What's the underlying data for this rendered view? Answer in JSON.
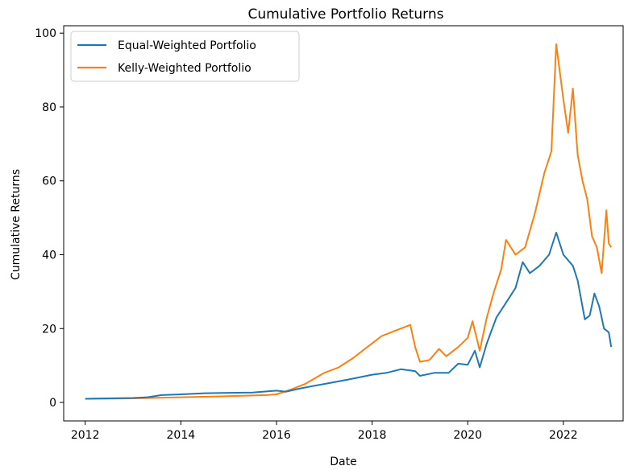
{
  "chart_data": {
    "type": "line",
    "title": "Cumulative Portfolio Returns",
    "xlabel": "Date",
    "ylabel": "Cumulative Returns",
    "xlim": [
      2011.55,
      2023.25
    ],
    "ylim": [
      -5,
      102
    ],
    "xticks": [
      2012,
      2014,
      2016,
      2018,
      2020,
      2022
    ],
    "xtick_labels": [
      "2012",
      "2014",
      "2016",
      "2018",
      "2020",
      "2022"
    ],
    "yticks": [
      0,
      20,
      40,
      60,
      80,
      100
    ],
    "ytick_labels": [
      "0",
      "20",
      "40",
      "60",
      "80",
      "100"
    ],
    "grid": false,
    "legend_position": "top-left",
    "series": [
      {
        "name": "Equal-Weighted Portfolio",
        "color": "#1f77b4",
        "points": [
          [
            2012.0,
            1.0
          ],
          [
            2012.5,
            1.1
          ],
          [
            2013.0,
            1.2
          ],
          [
            2013.3,
            1.4
          ],
          [
            2013.6,
            2.0
          ],
          [
            2014.0,
            2.2
          ],
          [
            2014.5,
            2.5
          ],
          [
            2015.0,
            2.6
          ],
          [
            2015.5,
            2.7
          ],
          [
            2016.0,
            3.2
          ],
          [
            2016.2,
            2.9
          ],
          [
            2016.5,
            3.8
          ],
          [
            2017.0,
            5.0
          ],
          [
            2017.5,
            6.2
          ],
          [
            2018.0,
            7.5
          ],
          [
            2018.3,
            8.0
          ],
          [
            2018.6,
            9.0
          ],
          [
            2018.9,
            8.5
          ],
          [
            2019.0,
            7.2
          ],
          [
            2019.3,
            8.0
          ],
          [
            2019.6,
            8.0
          ],
          [
            2019.8,
            10.5
          ],
          [
            2020.0,
            10.2
          ],
          [
            2020.15,
            14.0
          ],
          [
            2020.25,
            9.5
          ],
          [
            2020.4,
            16.0
          ],
          [
            2020.6,
            23.0
          ],
          [
            2020.8,
            27.0
          ],
          [
            2021.0,
            31.0
          ],
          [
            2021.15,
            38.0
          ],
          [
            2021.3,
            35.0
          ],
          [
            2021.5,
            37.0
          ],
          [
            2021.7,
            40.0
          ],
          [
            2021.85,
            46.0
          ],
          [
            2022.0,
            40.0
          ],
          [
            2022.2,
            37.0
          ],
          [
            2022.3,
            33.0
          ],
          [
            2022.45,
            22.5
          ],
          [
            2022.55,
            23.5
          ],
          [
            2022.65,
            29.5
          ],
          [
            2022.75,
            26.0
          ],
          [
            2022.85,
            20.0
          ],
          [
            2022.95,
            19.0
          ],
          [
            2023.0,
            15.0
          ]
        ]
      },
      {
        "name": "Kelly-Weighted Portfolio",
        "color": "#ff7f0e",
        "points": [
          [
            2012.0,
            1.0
          ],
          [
            2013.0,
            1.1
          ],
          [
            2014.0,
            1.4
          ],
          [
            2015.0,
            1.7
          ],
          [
            2015.8,
            2.0
          ],
          [
            2016.0,
            2.2
          ],
          [
            2016.3,
            3.5
          ],
          [
            2016.6,
            5.0
          ],
          [
            2017.0,
            8.0
          ],
          [
            2017.3,
            9.5
          ],
          [
            2017.6,
            12.0
          ],
          [
            2017.9,
            15.0
          ],
          [
            2018.2,
            18.0
          ],
          [
            2018.5,
            19.5
          ],
          [
            2018.8,
            21.0
          ],
          [
            2018.9,
            15.0
          ],
          [
            2019.0,
            11.0
          ],
          [
            2019.2,
            11.5
          ],
          [
            2019.4,
            14.5
          ],
          [
            2019.55,
            12.5
          ],
          [
            2019.8,
            15.0
          ],
          [
            2020.0,
            17.5
          ],
          [
            2020.1,
            22.0
          ],
          [
            2020.25,
            14.0
          ],
          [
            2020.4,
            23.0
          ],
          [
            2020.55,
            30.0
          ],
          [
            2020.7,
            36.0
          ],
          [
            2020.8,
            44.0
          ],
          [
            2021.0,
            40.0
          ],
          [
            2021.2,
            42.0
          ],
          [
            2021.4,
            51.0
          ],
          [
            2021.6,
            62.0
          ],
          [
            2021.75,
            68.0
          ],
          [
            2021.85,
            97.0
          ],
          [
            2022.0,
            82.0
          ],
          [
            2022.1,
            73.0
          ],
          [
            2022.2,
            85.0
          ],
          [
            2022.3,
            67.0
          ],
          [
            2022.4,
            60.0
          ],
          [
            2022.5,
            55.0
          ],
          [
            2022.6,
            45.0
          ],
          [
            2022.7,
            42.0
          ],
          [
            2022.8,
            35.0
          ],
          [
            2022.9,
            52.0
          ],
          [
            2022.95,
            43.0
          ],
          [
            2023.0,
            42.0
          ]
        ]
      }
    ]
  }
}
